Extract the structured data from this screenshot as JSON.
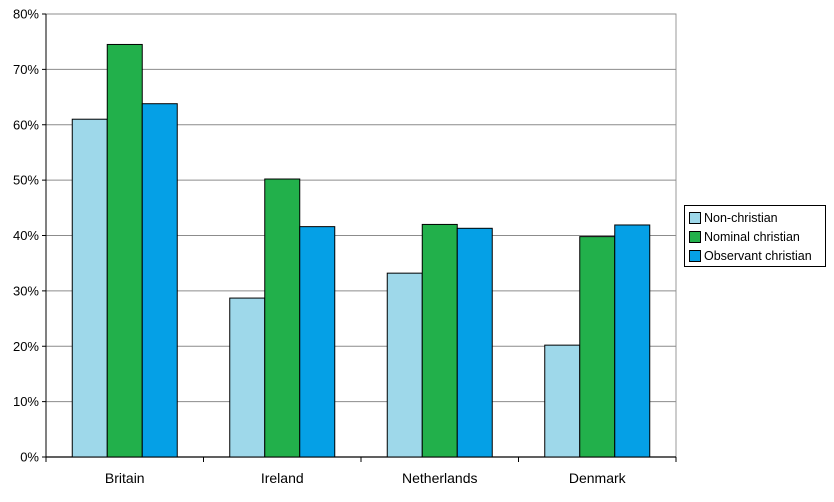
{
  "chart_data": {
    "type": "bar",
    "categories": [
      "Britain",
      "Ireland",
      "Netherlands",
      "Denmark"
    ],
    "series": [
      {
        "name": "Non-christian",
        "color": "#9ed8ea",
        "values": [
          61,
          28.7,
          33.2,
          20.2
        ]
      },
      {
        "name": "Nominal christian",
        "color": "#22b04b",
        "values": [
          74.5,
          50.2,
          42,
          39.8
        ]
      },
      {
        "name": "Observant christian",
        "color": "#05a0e6",
        "values": [
          63.8,
          41.6,
          41.3,
          41.9
        ]
      }
    ],
    "ylim": [
      0,
      80
    ],
    "yticks": [
      "0%",
      "10%",
      "20%",
      "30%",
      "40%",
      "50%",
      "60%",
      "70%",
      "80%"
    ],
    "ytick_values": [
      0,
      10,
      20,
      30,
      40,
      50,
      60,
      70,
      80
    ],
    "grid": true,
    "legend_position": "right"
  }
}
